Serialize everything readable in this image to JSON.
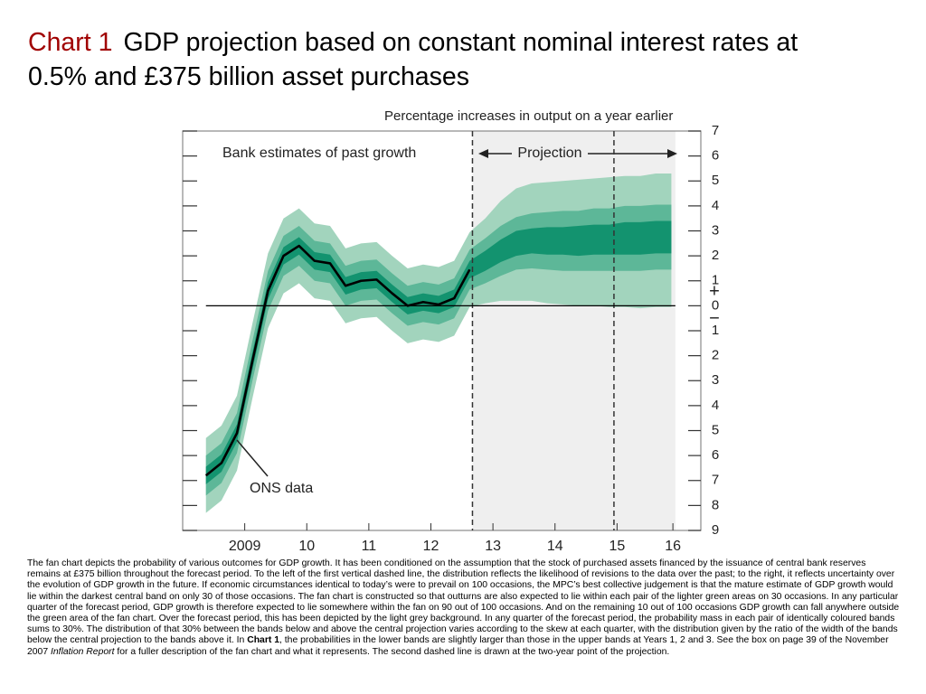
{
  "chart_data": {
    "type": "fan",
    "title_prefix": "Chart 1",
    "title": "GDP projection based on constant nominal interest rates at 0.5% and £375 billion asset purchases",
    "y_axis_label": "Percentage increases in output on a year earlier",
    "annotations": {
      "past": "Bank estimates of past growth",
      "projection": "Projection",
      "ons": "ONS data"
    },
    "sign_labels": [
      "+",
      "−"
    ],
    "xlim": [
      2008.5,
      2016.85
    ],
    "ylim": [
      -9,
      7
    ],
    "xticks": [
      {
        "value": 2009.5,
        "label": "2009"
      },
      {
        "value": 2010.5,
        "label": "10"
      },
      {
        "value": 2011.5,
        "label": "11"
      },
      {
        "value": 2012.5,
        "label": "12"
      },
      {
        "value": 2013.5,
        "label": "13"
      },
      {
        "value": 2014.5,
        "label": "14"
      },
      {
        "value": 2015.5,
        "label": "15"
      },
      {
        "value": 2016.4,
        "label": "16"
      }
    ],
    "yticks": [
      7,
      6,
      5,
      4,
      3,
      2,
      1,
      0,
      {
        "value": -1,
        "label": "1"
      },
      {
        "value": -2,
        "label": "2"
      },
      {
        "value": -3,
        "label": "3"
      },
      {
        "value": -4,
        "label": "4"
      },
      {
        "value": -5,
        "label": "5"
      },
      {
        "value": -6,
        "label": "6"
      },
      {
        "value": -7,
        "label": "7"
      },
      {
        "value": -8,
        "label": "8"
      },
      {
        "value": -9,
        "label": "9"
      }
    ],
    "shade": [
      2013.17,
      2016.44
    ],
    "shade_color": "#efefef",
    "vlines": [
      2013.17,
      2015.45
    ],
    "x": [
      2008.875,
      2009.125,
      2009.375,
      2009.625,
      2009.875,
      2010.125,
      2010.375,
      2010.625,
      2010.875,
      2011.125,
      2011.375,
      2011.625,
      2011.875,
      2012.125,
      2012.375,
      2012.625,
      2012.875,
      2013.125,
      2013.375,
      2013.625,
      2013.875,
      2014.125,
      2014.375,
      2014.625,
      2014.875,
      2015.125,
      2015.375,
      2015.625,
      2015.875,
      2016.125,
      2016.375
    ],
    "bands": [
      {
        "color": "#a2d4bd",
        "lower": [
          -8.3,
          -7.8,
          -6.6,
          -3.7,
          -0.9,
          0.5,
          0.9,
          0.3,
          0.2,
          -0.7,
          -0.5,
          -0.45,
          -1.0,
          -1.5,
          -1.35,
          -1.45,
          -1.2,
          -0.05,
          0.1,
          0.2,
          0.2,
          0.2,
          0.1,
          0.05,
          0.0,
          0.0,
          -0.05,
          -0.05,
          -0.1,
          -0.05,
          -0.05
        ],
        "upper": [
          -5.3,
          -4.8,
          -3.6,
          -0.7,
          2.1,
          3.5,
          3.9,
          3.3,
          3.2,
          2.3,
          2.5,
          2.55,
          2.0,
          1.5,
          1.65,
          1.55,
          1.8,
          2.95,
          3.5,
          4.2,
          4.7,
          4.9,
          4.95,
          5.0,
          5.05,
          5.1,
          5.15,
          5.2,
          5.2,
          5.3,
          5.3
        ]
      },
      {
        "color": "#5db798",
        "lower": [
          -7.6,
          -7.1,
          -5.9,
          -3.0,
          -0.2,
          1.2,
          1.6,
          1.0,
          0.9,
          0.0,
          0.2,
          0.25,
          -0.3,
          -0.8,
          -0.65,
          -0.75,
          -0.5,
          0.65,
          0.9,
          1.2,
          1.45,
          1.5,
          1.45,
          1.4,
          1.4,
          1.4,
          1.4,
          1.4,
          1.4,
          1.45,
          1.45
        ],
        "upper": [
          -6.0,
          -5.5,
          -4.3,
          -1.4,
          1.4,
          2.8,
          3.2,
          2.6,
          2.5,
          1.6,
          1.8,
          1.85,
          1.3,
          0.8,
          0.95,
          0.85,
          1.1,
          2.25,
          2.7,
          3.2,
          3.55,
          3.7,
          3.75,
          3.8,
          3.8,
          3.9,
          3.9,
          4.0,
          4.0,
          4.05,
          4.05
        ]
      },
      {
        "color": "#13936f",
        "lower": [
          -7.15,
          -6.65,
          -5.45,
          -2.55,
          0.25,
          1.65,
          2.05,
          1.45,
          1.35,
          0.45,
          0.65,
          0.7,
          0.15,
          -0.35,
          -0.2,
          -0.3,
          -0.05,
          1.1,
          1.4,
          1.75,
          2.0,
          2.1,
          2.05,
          2.05,
          2.0,
          2.05,
          2.05,
          2.05,
          2.05,
          2.1,
          2.1
        ],
        "upper": [
          -6.45,
          -5.95,
          -4.75,
          -1.85,
          0.95,
          2.35,
          2.75,
          2.15,
          2.05,
          1.15,
          1.35,
          1.4,
          0.85,
          0.35,
          0.5,
          0.4,
          0.65,
          1.8,
          2.2,
          2.65,
          3.0,
          3.1,
          3.15,
          3.15,
          3.2,
          3.25,
          3.25,
          3.35,
          3.35,
          3.4,
          3.4
        ]
      }
    ],
    "line": {
      "color": "#000000",
      "x": [
        2008.875,
        2009.125,
        2009.375,
        2009.625,
        2009.875,
        2010.125,
        2010.375,
        2010.625,
        2010.875,
        2011.125,
        2011.375,
        2011.625,
        2011.875,
        2012.125,
        2012.375,
        2012.625,
        2012.875,
        2013.125
      ],
      "values": [
        -6.8,
        -6.3,
        -5.1,
        -2.2,
        0.6,
        2.0,
        2.4,
        1.8,
        1.7,
        0.8,
        1.0,
        1.05,
        0.5,
        0.0,
        0.15,
        0.05,
        0.3,
        1.45
      ]
    },
    "caption": [
      "The fan chart depicts the probability of various outcomes for GDP growth.  It has been conditioned on the assumption that the stock of purchased assets financed by the issuance of central bank reserves remains at £375 billion throughout the forecast period.  To the left of the first vertical dashed line, the distribution reflects the likelihood of revisions to the data over the past;  to the right, it reflects uncertainty over the evolution of GDP growth in the future.  If economic circumstances identical to today’s were to prevail on 100 occasions, the MPC’s best collective judgement is that the mature estimate of GDP growth would lie within the darkest central band on only 30 of those occasions.  The fan chart is constructed so that outturns are also expected to lie within each pair of the lighter green areas on 30 occasions.  In any particular quarter of the forecast period, GDP growth is therefore expected to lie somewhere within the fan on 90 out of 100 occasions.  And on the remaining 10 out of 100 occasions GDP growth can fall anywhere outside the green area of the fan chart.  Over the forecast period, this has been depicted by the light grey background.  In any quarter of the forecast period, the probability mass in each pair of identically coloured bands sums to 30%.  The distribution of that 30% between the bands below and above the central projection varies according to the skew at each quarter, with the distribution given by the ratio of the width of the bands below the central projection to the bands above it.  In ",
      "Chart 1",
      ", the probabilities in the lower bands are slightly larger than those in the upper bands at Years 1, 2 and 3.  See the box on page 39 of the November 2007 ",
      "Inflation Report",
      " for a fuller description of the fan chart and what it represents.  The second dashed line is drawn at the two-year point of the projection."
    ]
  }
}
